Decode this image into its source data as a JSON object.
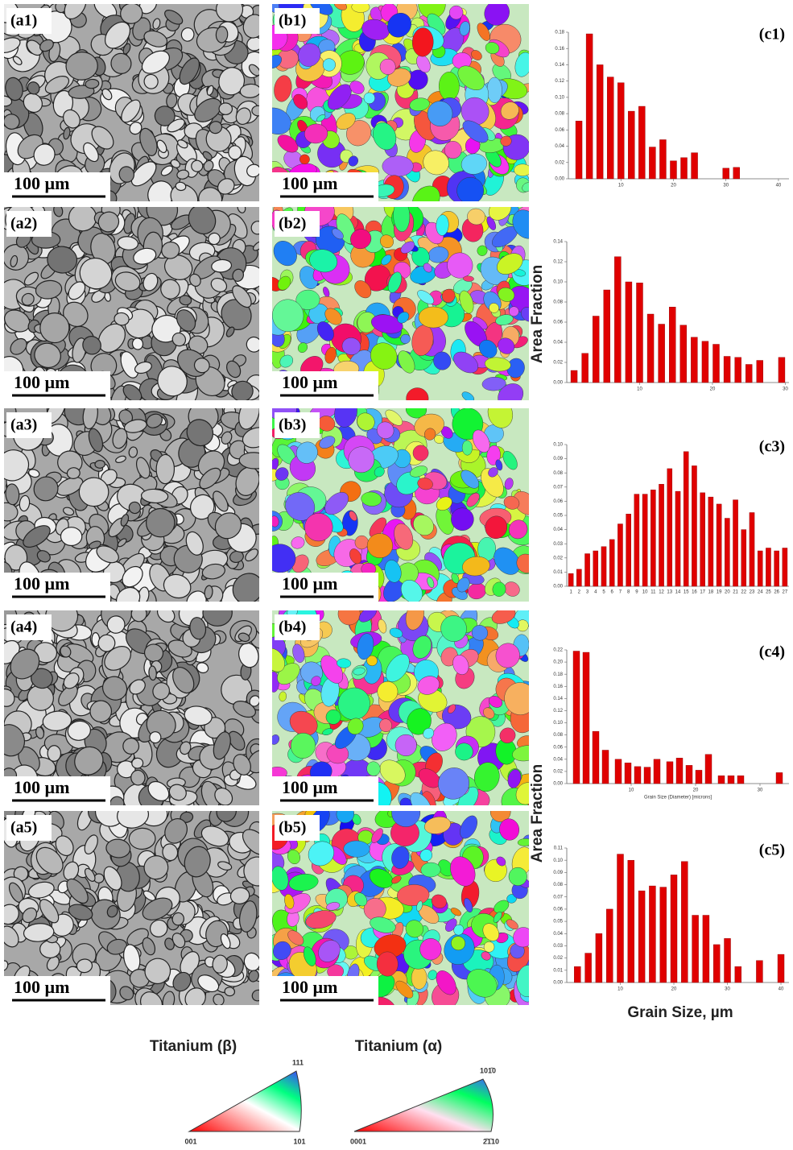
{
  "micrographs": {
    "a": [
      {
        "label": "(a1)",
        "scale": "100 µm"
      },
      {
        "label": "(a2)",
        "scale": "100 µm"
      },
      {
        "label": "(a3)",
        "scale": "100 µm"
      },
      {
        "label": "(a4)",
        "scale": "100 µm"
      },
      {
        "label": "(a5)",
        "scale": "100 µm"
      }
    ],
    "b": [
      {
        "label": "(b1)",
        "scale": "100 µm"
      },
      {
        "label": "(b2)",
        "scale": "100 µm"
      },
      {
        "label": "(b3)",
        "scale": "100 µm"
      },
      {
        "label": "(b4)",
        "scale": "100 µm"
      },
      {
        "label": "(b5)",
        "scale": "100 µm"
      }
    ]
  },
  "chart_data": [
    {
      "type": "bar",
      "label": "(c1)",
      "color": "#e00000",
      "x": [
        2,
        4,
        6,
        8,
        10,
        12,
        14,
        16,
        18,
        20,
        22,
        24,
        30,
        32
      ],
      "values": [
        0.071,
        0.178,
        0.14,
        0.125,
        0.118,
        0.083,
        0.089,
        0.039,
        0.048,
        0.022,
        0.026,
        0.032,
        0.013,
        0.014
      ],
      "xlim": [
        0,
        42
      ],
      "xticks": [
        10,
        20,
        30,
        40
      ],
      "ylim": [
        0,
        0.18
      ],
      "yticks": [
        {
          "value": 0,
          "label": "0.00"
        },
        {
          "value": 0.02,
          "label": "0.02"
        },
        {
          "value": 0.04,
          "label": "0.04"
        },
        {
          "value": 0.06,
          "label": "0.06"
        },
        {
          "value": 0.08,
          "label": "0.08"
        },
        {
          "value": 0.1,
          "label": "0.10"
        },
        {
          "value": 0.12,
          "label": "0.12"
        },
        {
          "value": 0.14,
          "label": "0.14"
        },
        {
          "value": 0.16,
          "label": "0.16"
        },
        {
          "value": 0.18,
          "label": "0.18"
        }
      ]
    },
    {
      "type": "bar",
      "y_label": "Area Fraction",
      "color": "#e00000",
      "x": [
        1,
        2.5,
        4,
        5.5,
        7,
        8.5,
        10,
        11.5,
        13,
        14.5,
        16,
        17.5,
        19,
        20.5,
        22,
        23.5,
        25,
        26.5,
        29.5
      ],
      "values": [
        0.012,
        0.029,
        0.066,
        0.092,
        0.125,
        0.1,
        0.099,
        0.068,
        0.058,
        0.075,
        0.057,
        0.045,
        0.041,
        0.038,
        0.026,
        0.025,
        0.018,
        0.022,
        0.025
      ],
      "xlim": [
        0,
        30.5
      ],
      "xticks": [
        10,
        20,
        30
      ],
      "ylim": [
        0,
        0.14
      ],
      "yticks": [
        {
          "value": 0,
          "label": "0.00"
        },
        {
          "value": 0.02,
          "label": "0.02"
        },
        {
          "value": 0.04,
          "label": "0.04"
        },
        {
          "value": 0.06,
          "label": "0.06"
        },
        {
          "value": 0.08,
          "label": "0.08"
        },
        {
          "value": 0.1,
          "label": "0.10"
        },
        {
          "value": 0.12,
          "label": "0.12"
        },
        {
          "value": 0.14,
          "label": "0.14"
        }
      ]
    },
    {
      "type": "bar",
      "label": "(c3)",
      "color": "#e00000",
      "categories": [
        "1",
        "2",
        "3",
        "4",
        "5",
        "6",
        "7",
        "8",
        "9",
        "10",
        "11",
        "12",
        "13",
        "14",
        "15",
        "16",
        "17",
        "18",
        "19",
        "20",
        "21",
        "22",
        "23",
        "24",
        "25",
        "26",
        "27"
      ],
      "values": [
        0.009,
        0.012,
        0.023,
        0.025,
        0.028,
        0.033,
        0.044,
        0.051,
        0.065,
        0.065,
        0.068,
        0.072,
        0.083,
        0.067,
        0.095,
        0.085,
        0.066,
        0.063,
        0.058,
        0.048,
        0.061,
        0.04,
        0.052,
        0.025,
        0.027,
        0.025,
        0.027
      ],
      "ylim": [
        0,
        0.1
      ],
      "yticks": [
        {
          "value": 0,
          "label": "0.00"
        },
        {
          "value": 0.01,
          "label": "0.01"
        },
        {
          "value": 0.02,
          "label": "0.02"
        },
        {
          "value": 0.03,
          "label": "0.03"
        },
        {
          "value": 0.04,
          "label": "0.04"
        },
        {
          "value": 0.05,
          "label": "0.05"
        },
        {
          "value": 0.06,
          "label": "0.06"
        },
        {
          "value": 0.07,
          "label": "0.07"
        },
        {
          "value": 0.08,
          "label": "0.08"
        },
        {
          "value": 0.09,
          "label": "0.09"
        },
        {
          "value": 0.1,
          "label": "0.10"
        }
      ]
    },
    {
      "type": "bar",
      "label": "(c4)",
      "y_label": "Area Fraction",
      "x_label": "Grain Size (Diameter) [microns]",
      "color": "#e00000",
      "x": [
        1.5,
        3,
        4.5,
        6,
        8,
        9.5,
        11,
        12.5,
        14,
        16,
        17.5,
        19,
        20.5,
        22,
        24,
        25.5,
        27,
        33
      ],
      "values": [
        0.218,
        0.216,
        0.086,
        0.055,
        0.04,
        0.034,
        0.028,
        0.027,
        0.04,
        0.036,
        0.042,
        0.03,
        0.022,
        0.048,
        0.013,
        0.013,
        0.013,
        0.018
      ],
      "xlim": [
        0,
        34.5
      ],
      "xticks": [
        10,
        20,
        30
      ],
      "ylim": [
        0,
        0.22
      ],
      "yticks": [
        {
          "value": 0,
          "label": "0.00"
        },
        {
          "value": 0.02,
          "label": "0.02"
        },
        {
          "value": 0.04,
          "label": "0.04"
        },
        {
          "value": 0.06,
          "label": "0.06"
        },
        {
          "value": 0.08,
          "label": "0.08"
        },
        {
          "value": 0.1,
          "label": "0.10"
        },
        {
          "value": 0.12,
          "label": "0.12"
        },
        {
          "value": 0.14,
          "label": "0.14"
        },
        {
          "value": 0.16,
          "label": "0.16"
        },
        {
          "value": 0.18,
          "label": "0.18"
        },
        {
          "value": 0.2,
          "label": "0.20"
        },
        {
          "value": 0.22,
          "label": "0.22"
        }
      ]
    },
    {
      "type": "bar",
      "label": "(c5)",
      "x_label": "Grain Size, µm",
      "color": "#e00000",
      "x": [
        2,
        4,
        6,
        8,
        10,
        12,
        14,
        16,
        18,
        20,
        22,
        24,
        26,
        28,
        30,
        32,
        36,
        40
      ],
      "values": [
        0.013,
        0.024,
        0.04,
        0.06,
        0.105,
        0.1,
        0.075,
        0.079,
        0.078,
        0.088,
        0.099,
        0.055,
        0.055,
        0.031,
        0.036,
        0.013,
        0.018,
        0.023
      ],
      "xlim": [
        0,
        41.5
      ],
      "xticks": [
        10,
        20,
        30,
        40
      ],
      "ylim": [
        0,
        0.11
      ],
      "yticks": [
        {
          "value": 0,
          "label": "0.00"
        },
        {
          "value": 0.01,
          "label": "0.01"
        },
        {
          "value": 0.02,
          "label": "0.02"
        },
        {
          "value": 0.03,
          "label": "0.03"
        },
        {
          "value": 0.04,
          "label": "0.04"
        },
        {
          "value": 0.05,
          "label": "0.05"
        },
        {
          "value": 0.06,
          "label": "0.06"
        },
        {
          "value": 0.07,
          "label": "0.07"
        },
        {
          "value": 0.08,
          "label": "0.08"
        },
        {
          "value": 0.09,
          "label": "0.09"
        },
        {
          "value": 0.1,
          "label": "0.10"
        },
        {
          "value": 0.11,
          "label": "0.11"
        }
      ]
    }
  ],
  "legend": {
    "beta": {
      "title": "Titanium (β)",
      "top": "111",
      "left": "001",
      "right": "101"
    },
    "alpha": {
      "title": "Titanium (α)",
      "top": "101̄0",
      "left": "0001",
      "right": "2̄1̄10"
    }
  }
}
